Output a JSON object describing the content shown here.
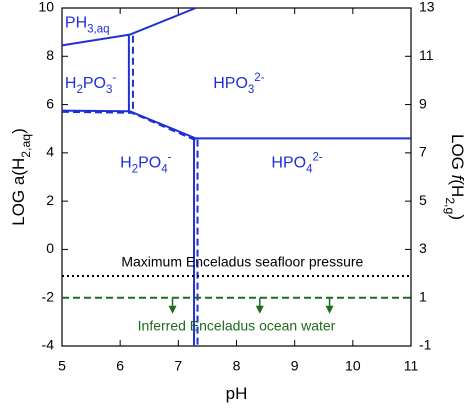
{
  "chart_data": {
    "type": "line",
    "xlabel": [
      {
        "text": "pH"
      }
    ],
    "ylabel": [
      {
        "text": "LOG a(H"
      },
      {
        "text": "2,aq",
        "style": "sub"
      },
      {
        "text": ")"
      }
    ],
    "y2label": [
      {
        "text": "LOG "
      },
      {
        "text": "f",
        "style": "italic"
      },
      {
        "text": "(H"
      },
      {
        "text": "2,g",
        "style": "sub"
      },
      {
        "text": ")"
      }
    ],
    "xlim": [
      5,
      11
    ],
    "xticks": [
      5,
      6,
      7,
      8,
      9,
      10,
      11
    ],
    "ylim": [
      -4,
      10
    ],
    "yticks": [
      -4,
      -2,
      0,
      2,
      4,
      6,
      8,
      10
    ],
    "y2lim": [
      -1,
      13
    ],
    "y2ticks": [
      -1,
      1,
      3,
      5,
      7,
      9,
      11,
      13
    ],
    "series": [
      {
        "color": "#1f2fd6",
        "dash": "solid",
        "x": [
          5,
          6.17,
          7.3
        ],
        "y": [
          8.45,
          8.9,
          10
        ]
      },
      {
        "color": "#1f2fd6",
        "dash": "solid",
        "x": [
          6.15,
          6.15
        ],
        "y": [
          8.9,
          5.7
        ]
      },
      {
        "color": "#1f2fd6",
        "dash": "dashed",
        "x": [
          6.22,
          6.22
        ],
        "y": [
          8.85,
          5.7
        ]
      },
      {
        "color": "#1f2fd6",
        "dash": "solid",
        "x": [
          5,
          6.17,
          7.3,
          11
        ],
        "y": [
          5.75,
          5.72,
          4.6,
          4.6
        ]
      },
      {
        "color": "#1f2fd6",
        "dash": "dashed",
        "x": [
          5,
          6.2,
          7.3
        ],
        "y": [
          5.7,
          5.66,
          4.52
        ]
      },
      {
        "color": "#1f2fd6",
        "dash": "solid",
        "x": [
          7.27,
          7.27
        ],
        "y": [
          4.6,
          -4
        ]
      },
      {
        "color": "#1f2fd6",
        "dash": "dashed",
        "x": [
          7.33,
          7.33
        ],
        "y": [
          4.55,
          -4
        ]
      },
      {
        "color": "#000000",
        "dash": "dotted",
        "x": [
          5,
          11
        ],
        "y": [
          -1.1,
          -1.1
        ]
      },
      {
        "color": "#1e6b1e",
        "dash": "dashed",
        "x": [
          5,
          11
        ],
        "y": [
          -2,
          -2
        ]
      }
    ],
    "arrows": {
      "color": "#1e6b1e",
      "x": [
        6.9,
        8.4,
        9.6
      ],
      "y": [
        -2,
        -2,
        -2
      ]
    },
    "labels": [
      {
        "color": "#1f2fd6",
        "parts": [
          {
            "text": "PH"
          },
          {
            "text": "3,aq",
            "style": "sub"
          }
        ]
      },
      {
        "color": "#1f2fd6",
        "parts": [
          {
            "text": "H"
          },
          {
            "text": "2",
            "style": "sub"
          },
          {
            "text": "PO"
          },
          {
            "text": "3",
            "style": "sub"
          },
          {
            "text": "-",
            "style": "sup"
          }
        ]
      },
      {
        "color": "#1f2fd6",
        "parts": [
          {
            "text": "HPO"
          },
          {
            "text": "3",
            "style": "sub"
          },
          {
            "text": "2-",
            "style": "sup"
          }
        ]
      },
      {
        "color": "#1f2fd6",
        "parts": [
          {
            "text": "H"
          },
          {
            "text": "2",
            "style": "sub"
          },
          {
            "text": "PO"
          },
          {
            "text": "4",
            "style": "sub"
          },
          {
            "text": "-",
            "style": "sup"
          }
        ]
      },
      {
        "color": "#1f2fd6",
        "parts": [
          {
            "text": "HPO"
          },
          {
            "text": "4",
            "style": "sub"
          },
          {
            "text": "2-",
            "style": "sup"
          }
        ]
      },
      {
        "color": "#000000",
        "parts": [
          {
            "text": "Maximum Enceladus seafloor pressure"
          }
        ]
      },
      {
        "color": "#1e6b1e",
        "parts": [
          {
            "text": "Inferred Enceladus ocean water"
          }
        ]
      }
    ]
  }
}
